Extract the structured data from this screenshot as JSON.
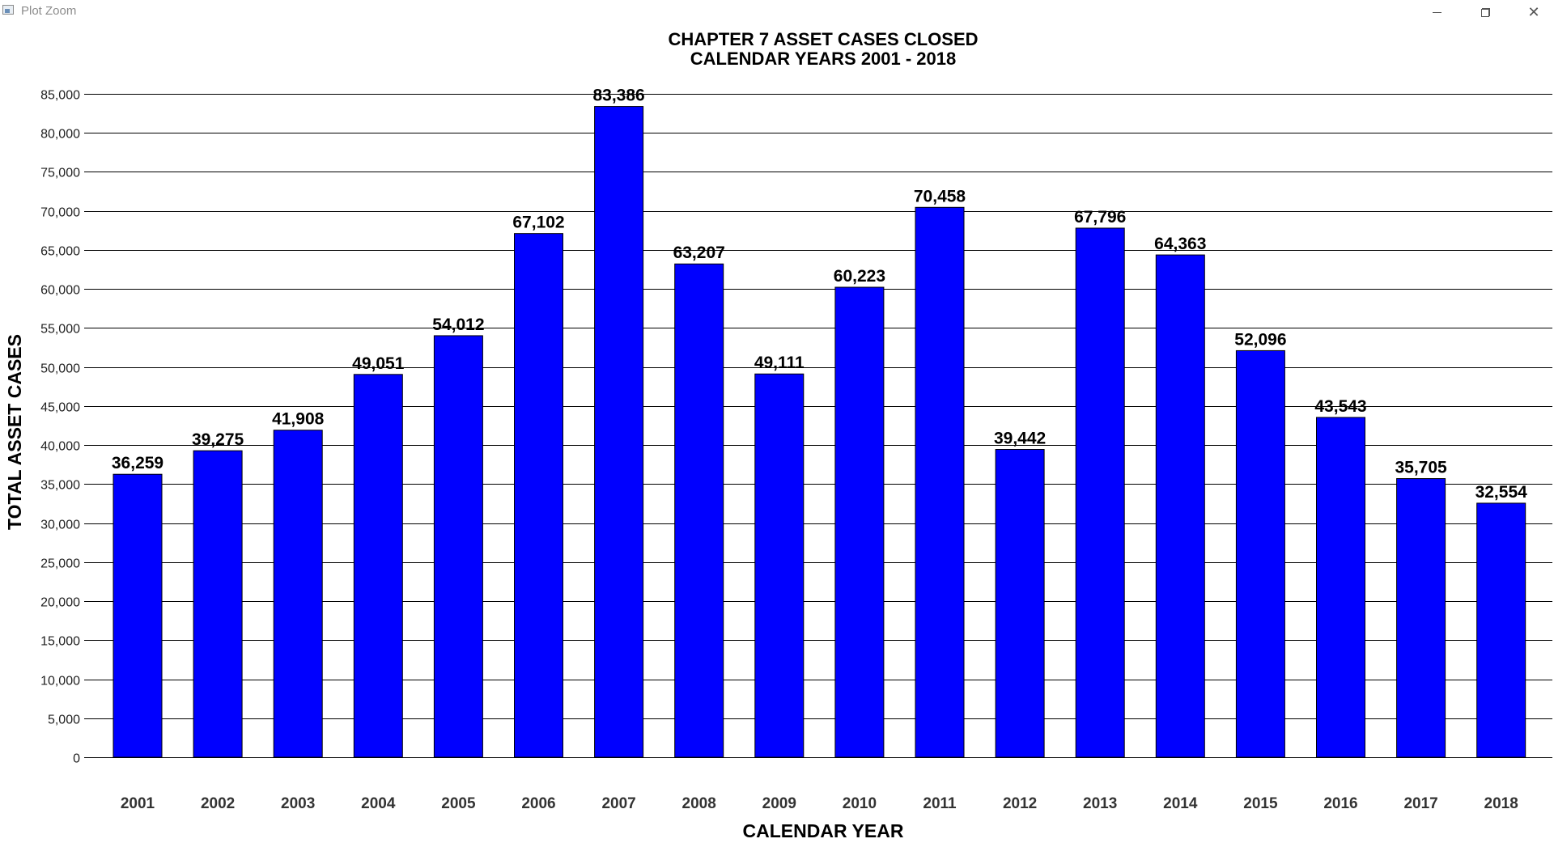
{
  "window": {
    "title": "Plot Zoom",
    "minimize_icon": "minimize-icon",
    "maximize_icon": "restore-icon",
    "close_icon": "close-icon"
  },
  "chart_data": {
    "type": "bar",
    "title_line1": "CHAPTER 7 ASSET CASES CLOSED",
    "title_line2": "CALENDAR YEARS 2001 - 2018",
    "xlabel": "CALENDAR YEAR",
    "ylabel": "TOTAL ASSET CASES",
    "categories": [
      "2001",
      "2002",
      "2003",
      "2004",
      "2005",
      "2006",
      "2007",
      "2008",
      "2009",
      "2010",
      "2011",
      "2012",
      "2013",
      "2014",
      "2015",
      "2016",
      "2017",
      "2018"
    ],
    "values": [
      36259,
      39275,
      41908,
      49051,
      54012,
      67102,
      83386,
      63207,
      49111,
      60223,
      70458,
      39442,
      67796,
      64363,
      52096,
      43543,
      35705,
      32554
    ],
    "value_labels": [
      "36,259",
      "39,275",
      "41,908",
      "49,051",
      "54,012",
      "67,102",
      "83,386",
      "63,207",
      "49,111",
      "60,223",
      "70,458",
      "39,442",
      "67,796",
      "64,363",
      "52,096",
      "43,543",
      "35,705",
      "32,554"
    ],
    "yticks": [
      0,
      5000,
      10000,
      15000,
      20000,
      25000,
      30000,
      35000,
      40000,
      45000,
      50000,
      55000,
      60000,
      65000,
      70000,
      75000,
      80000,
      85000
    ],
    "ytick_labels": [
      "0",
      "5,000",
      "10,000",
      "15,000",
      "20,000",
      "25,000",
      "30,000",
      "35,000",
      "40,000",
      "45,000",
      "50,000",
      "55,000",
      "60,000",
      "65,000",
      "70,000",
      "75,000",
      "80,000",
      "85,000"
    ],
    "ylim": [
      0,
      85000
    ],
    "grid": true,
    "bar_color": "#0000ff"
  }
}
